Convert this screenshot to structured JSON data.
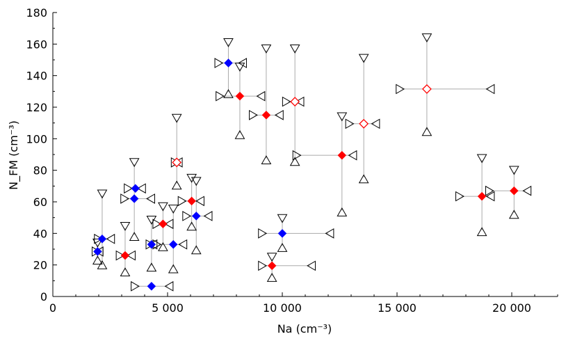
{
  "chart_data": {
    "type": "scatter",
    "title": "",
    "xlabel": "Na (cm⁻³)",
    "ylabel": "N_FM (cm⁻³)",
    "xlim": [
      0,
      22000
    ],
    "ylim": [
      0,
      180
    ],
    "x_ticks": [
      0,
      5000,
      10000,
      15000,
      20000
    ],
    "x_tick_labels": [
      "0",
      "5 000",
      "10 000",
      "15 000",
      "20 000"
    ],
    "y_ticks": [
      0,
      20,
      40,
      60,
      80,
      100,
      120,
      140,
      160,
      180
    ],
    "y_tick_labels": [
      "0",
      "20",
      "40",
      "60",
      "80",
      "100",
      "120",
      "140",
      "160",
      "180"
    ],
    "grid": false,
    "colors": {
      "blue": "#0000ff",
      "red": "#ff0000",
      "errorbar": "#aaaaaa",
      "axis": "#000000"
    },
    "series": [
      {
        "marker": "filled-diamond",
        "color": "#0000ff",
        "points": [
          {
            "x": 1950,
            "y": 28.5,
            "xlo": 1950,
            "xhi": 1950,
            "ylo": 24,
            "yhi": 33
          },
          {
            "x": 2150,
            "y": 36.5,
            "xlo": 2050,
            "xhi": 2450,
            "ylo": 21,
            "yhi": 64
          },
          {
            "x": 3600,
            "y": 68.5,
            "xlo": 3350,
            "xhi": 3800,
            "ylo": 68.5,
            "yhi": 68.5
          },
          {
            "x": 3550,
            "y": 62,
            "xlo": 3200,
            "xhi": 4200,
            "ylo": 39,
            "yhi": 84
          },
          {
            "x": 4300,
            "y": 6.5,
            "xlo": 3650,
            "xhi": 5000,
            "ylo": 6.5,
            "yhi": 6.5
          },
          {
            "x": 4300,
            "y": 33,
            "xlo": 4300,
            "xhi": 4300,
            "ylo": 19.5,
            "yhi": 47.5
          },
          {
            "x": 5250,
            "y": 33,
            "xlo": 4600,
            "xhi": 5600,
            "ylo": 18.5,
            "yhi": 54.5
          },
          {
            "x": 6250,
            "y": 51,
            "xlo": 5900,
            "xhi": 6700,
            "ylo": 30.5,
            "yhi": 72
          },
          {
            "x": 7650,
            "y": 148,
            "xlo": 7300,
            "xhi": 8200,
            "ylo": 129.5,
            "yhi": 160
          },
          {
            "x": 10000,
            "y": 40,
            "xlo": 9200,
            "xhi": 12000,
            "ylo": 32,
            "yhi": 48.5
          }
        ]
      },
      {
        "marker": "filled-diamond",
        "color": "#ff0000",
        "points": [
          {
            "x": 3150,
            "y": 26,
            "xlo": 3000,
            "xhi": 3350,
            "ylo": 16.5,
            "yhi": 43.5
          },
          {
            "x": 4800,
            "y": 46,
            "xlo": 4600,
            "xhi": 5000,
            "ylo": 32.5,
            "yhi": 56
          },
          {
            "x": 6050,
            "y": 60.5,
            "xlo": 5700,
            "xhi": 6350,
            "ylo": 45.5,
            "yhi": 74
          },
          {
            "x": 8150,
            "y": 127,
            "xlo": 7350,
            "xhi": 9000,
            "ylo": 103.5,
            "yhi": 144.5
          },
          {
            "x": 9300,
            "y": 115,
            "xlo": 8800,
            "xhi": 9800,
            "ylo": 87.5,
            "yhi": 156
          },
          {
            "x": 9550,
            "y": 19.5,
            "xlo": 9200,
            "xhi": 11200,
            "ylo": 13,
            "yhi": 24
          },
          {
            "x": 12600,
            "y": 89.5,
            "xlo": 10700,
            "xhi": 13000,
            "ylo": 54.5,
            "yhi": 113
          },
          {
            "x": 18700,
            "y": 63.5,
            "xlo": 17800,
            "xhi": 19000,
            "ylo": 42,
            "yhi": 86.5
          },
          {
            "x": 20100,
            "y": 67,
            "xlo": 19100,
            "xhi": 20600,
            "ylo": 53,
            "yhi": 79
          }
        ]
      },
      {
        "marker": "open-diamond",
        "color": "#ff0000",
        "points": [
          {
            "x": 5400,
            "y": 85,
            "xlo": 5400,
            "xhi": 5400,
            "ylo": 71.5,
            "yhi": 112
          },
          {
            "x": 10550,
            "y": 123.5,
            "xlo": 10250,
            "xhi": 10700,
            "ylo": 86.5,
            "yhi": 156
          },
          {
            "x": 13550,
            "y": 109.5,
            "xlo": 13000,
            "xhi": 14000,
            "ylo": 75.5,
            "yhi": 150
          },
          {
            "x": 16300,
            "y": 131.5,
            "xlo": 15200,
            "xhi": 19000,
            "ylo": 105.5,
            "yhi": 163
          }
        ]
      }
    ]
  }
}
